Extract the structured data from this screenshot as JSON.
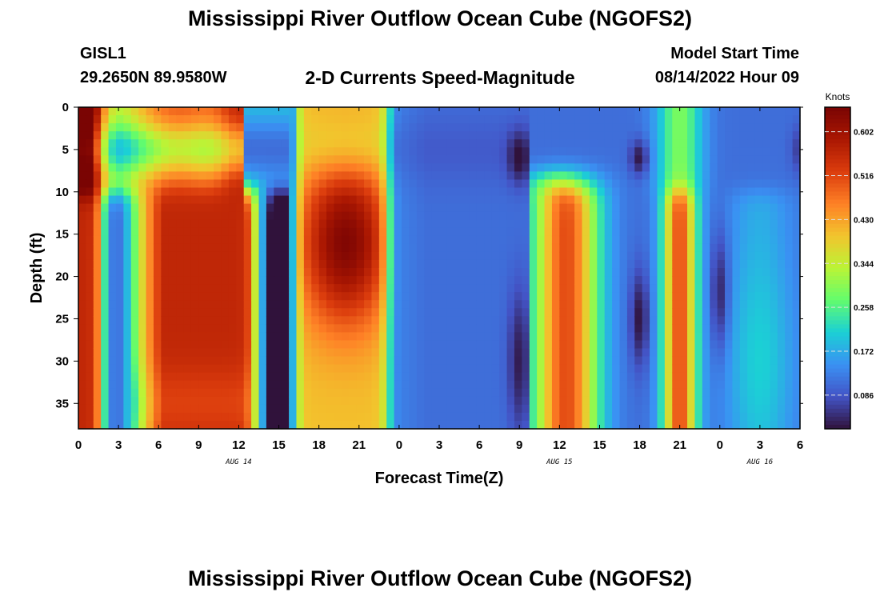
{
  "header": {
    "title": "Mississippi River Outflow Ocean Cube (NGOFS2)",
    "station_id": "GISL1",
    "station_coords": "29.2650N  89.9580W",
    "subtitle": "2-D Currents Speed-Magnitude",
    "start_label": "Model Start Time",
    "start_value": "08/14/2022 Hour 09"
  },
  "footer": {
    "title": "Mississippi River Outflow Ocean Cube (NGOFS2)"
  },
  "chart_data": {
    "type": "heatmap",
    "xlabel": "Forecast Time(Z)",
    "ylabel": "Depth (ft)",
    "x_range_hours": [
      0,
      54
    ],
    "x_ticks": [
      "0",
      "3",
      "6",
      "9",
      "12",
      "15",
      "18",
      "21",
      "0",
      "3",
      "6",
      "9",
      "12",
      "15",
      "18",
      "21",
      "0",
      "3",
      "6"
    ],
    "date_labels": [
      {
        "text": "AUG 14",
        "hour": 12
      },
      {
        "text": "AUG 15",
        "hour": 36
      },
      {
        "text": "AUG 16",
        "hour": 51
      }
    ],
    "y_ticks": [
      "0",
      "5",
      "10",
      "15",
      "20",
      "25",
      "30",
      "35"
    ],
    "y_range_ft": [
      0,
      38
    ],
    "colorbar": {
      "unit": "Knots",
      "ticks": [
        "0.086",
        "0.172",
        "0.258",
        "0.344",
        "0.430",
        "0.516",
        "0.602"
      ],
      "range": [
        0.02,
        0.65
      ]
    },
    "grid": false
  }
}
